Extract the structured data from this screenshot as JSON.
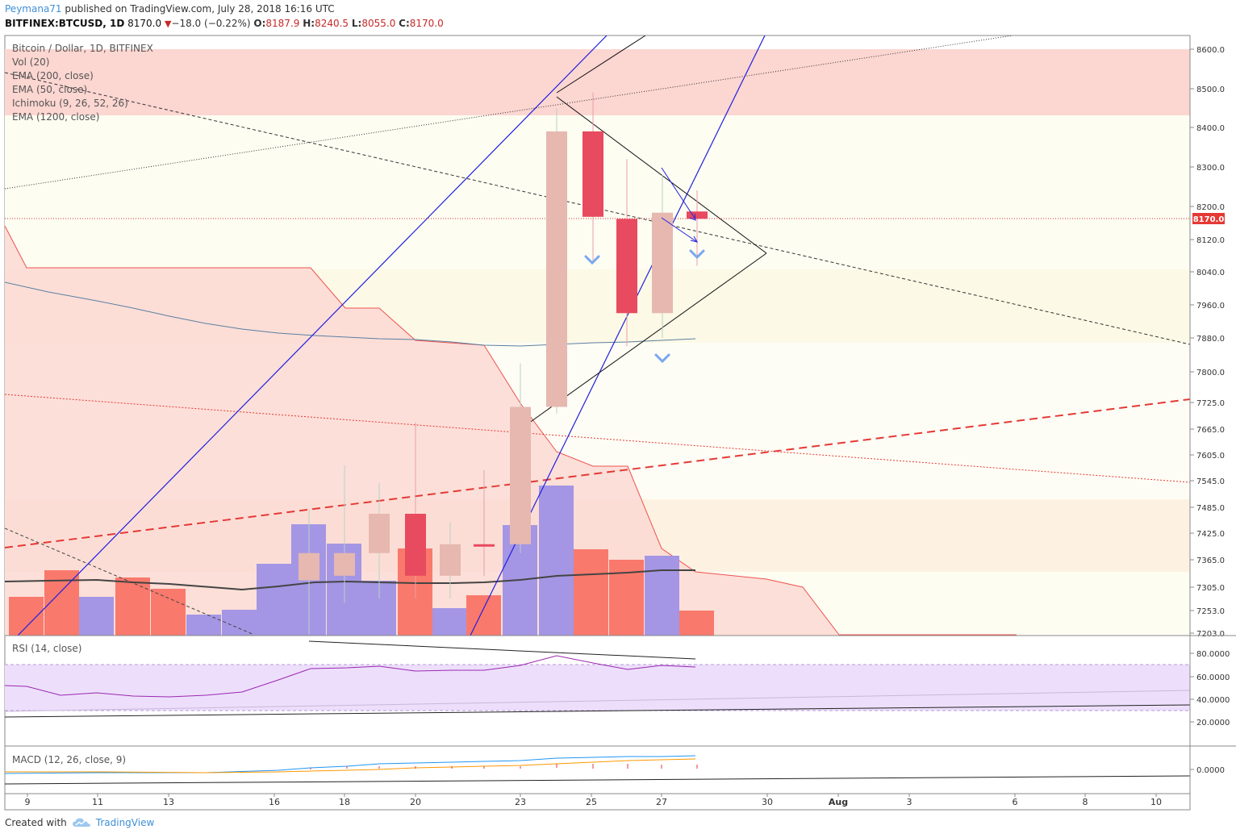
{
  "header": {
    "username": "Peymana71",
    "published": "published on TradingView.com, July 28, 2018 16:16 UTC",
    "symbol": "BITFINEX:BTCUSD, 1D",
    "last": "8170.0",
    "arrow": "▼",
    "change": "−18.0 (−0.22%)",
    "open_label": "O:",
    "open": "8187.9",
    "high_label": "H:",
    "high": "8240.5",
    "low_label": "L:",
    "low": "8055.0",
    "close_label": "C:",
    "close": "8170.0"
  },
  "legend": {
    "title": "Bitcoin / Dollar, 1D, BITFINEX",
    "items": [
      "Vol (20)",
      "EMA (200, close)",
      "EMA (50, close)",
      "Ichimoku (9, 26, 52, 26)",
      "EMA (1200, close)"
    ]
  },
  "rsi_label": "RSI (14, close)",
  "macd_label": "MACD (12, 26, close, 9)",
  "footer": {
    "created": "Created with",
    "brand": "TradingView",
    "icon": "cloud-logo-icon"
  },
  "colors": {
    "bull_candle": "#e6b8b0",
    "bear_candle": "#e84a5f",
    "vol_bull": "#a496e4",
    "vol_bear": "#f9796c",
    "price_line": "#d32f2f",
    "trendline_blue": "#2020e0",
    "rsi_line": "#9c27b0",
    "macd_line": "#2196f3",
    "signal_line": "#ff9800"
  },
  "chart_data": {
    "type": "candlestick",
    "price_axis": {
      "ticks": [
        "8600.0",
        "8500.0",
        "8400.0",
        "8300.0",
        "8200.0",
        "8120.0",
        "8040.0",
        "7960.0",
        "7880.0",
        "7800.0",
        "7725.0",
        "7665.0",
        "7605.0",
        "7545.0",
        "7485.0",
        "7425.0",
        "7365.0",
        "7305.0",
        "7253.0",
        "7203.0"
      ],
      "last_price_label": "8170.0"
    },
    "time_axis": {
      "ticks": [
        "9",
        "11",
        "13",
        "16",
        "18",
        "20",
        "23",
        "25",
        "27",
        "30",
        "Aug",
        "3",
        "6",
        "8",
        "10"
      ]
    },
    "candles": [
      {
        "date": "Jul 17",
        "o": 7320,
        "h": 7480,
        "l": 7200,
        "c": 7380
      },
      {
        "date": "Jul 18",
        "o": 7330,
        "h": 7580,
        "l": 7270,
        "c": 7380
      },
      {
        "date": "Jul 19",
        "o": 7380,
        "h": 7540,
        "l": 7280,
        "c": 7470
      },
      {
        "date": "Jul 20",
        "o": 7470,
        "h": 7680,
        "l": 7280,
        "c": 7330
      },
      {
        "date": "Jul 21",
        "o": 7330,
        "h": 7450,
        "l": 7280,
        "c": 7400
      },
      {
        "date": "Jul 22",
        "o": 7400,
        "h": 7570,
        "l": 7330,
        "c": 7395
      },
      {
        "date": "Jul 23",
        "o": 7400,
        "h": 7820,
        "l": 7380,
        "c": 7715
      },
      {
        "date": "Jul 24",
        "o": 7715,
        "h": 8450,
        "l": 7700,
        "c": 8390
      },
      {
        "date": "Jul 25",
        "o": 8390,
        "h": 8490,
        "l": 8060,
        "c": 8175
      },
      {
        "date": "Jul 26",
        "o": 8170,
        "h": 8320,
        "l": 7860,
        "c": 7940
      },
      {
        "date": "Jul 27",
        "o": 7940,
        "h": 8280,
        "l": 7880,
        "c": 8185
      },
      {
        "date": "Jul 28",
        "o": 8187.9,
        "h": 8240.5,
        "l": 8055,
        "c": 8170
      }
    ],
    "rsi_axis": {
      "ticks": [
        "80.0000",
        "60.0000",
        "40.0000",
        "20.0000"
      ]
    },
    "macd_axis": {
      "ticks": [
        "0.0000"
      ]
    }
  }
}
